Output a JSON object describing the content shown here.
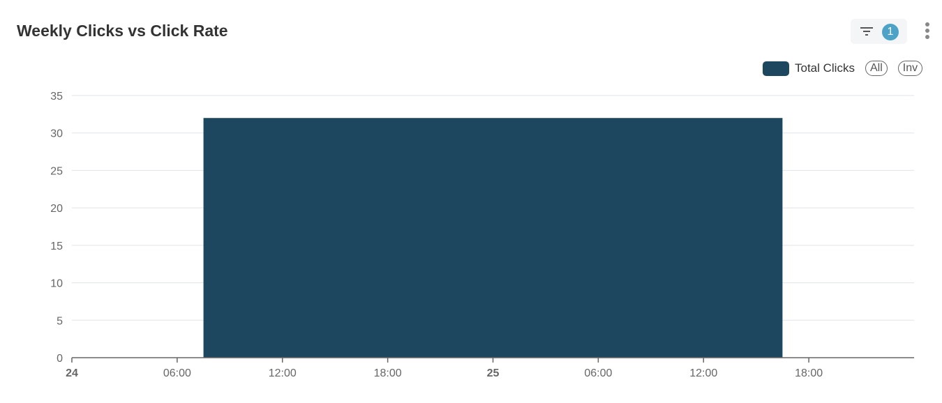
{
  "header": {
    "title": "Weekly Clicks vs Click Rate",
    "filter_count": "1",
    "filter_icon": "filter-icon",
    "menu_icon": "more-vertical-icon"
  },
  "legend": {
    "all_label": "All",
    "inv_label": "Inv"
  },
  "chart_data": {
    "type": "bar",
    "title": "Weekly Clicks vs Click Rate",
    "xlabel": "",
    "ylabel": "",
    "x_axis": {
      "type": "time",
      "range_hours": [
        0,
        48
      ],
      "tick_labels": [
        "24",
        "06:00",
        "12:00",
        "18:00",
        "25",
        "06:00",
        "12:00",
        "18:00"
      ],
      "bold_ticks": [
        "24",
        "25"
      ]
    },
    "ylim": [
      0,
      35
    ],
    "y_ticks": [
      0,
      5,
      10,
      15,
      20,
      25,
      30,
      35
    ],
    "grid": true,
    "legend_position": "top-right",
    "series": [
      {
        "name": "Total Clicks",
        "color": "#1d475e",
        "bars": [
          {
            "start": "24 07:30",
            "end": "25 16:30",
            "start_hour": 7.5,
            "end_hour": 40.5,
            "value": 32
          }
        ]
      }
    ]
  }
}
